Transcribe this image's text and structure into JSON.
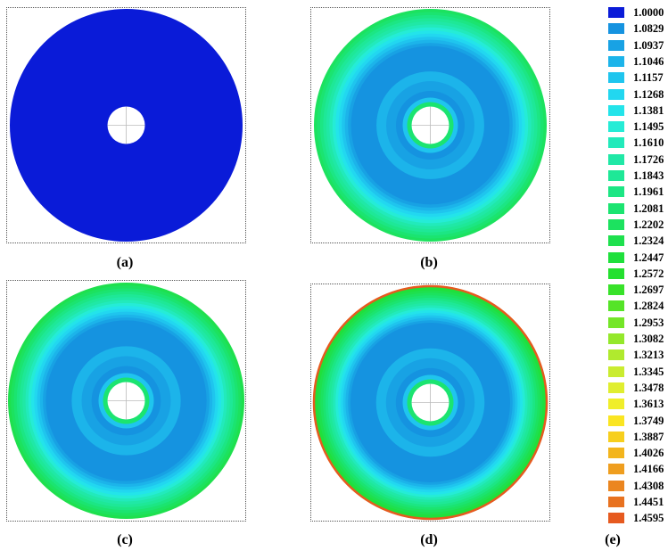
{
  "panels": [
    {
      "label": "(a)",
      "fill": "uniform",
      "ring_count": 0
    },
    {
      "label": "(b)",
      "fill": "gradient",
      "ring_count": 13
    },
    {
      "label": "(c)",
      "fill": "gradient",
      "ring_count": 14
    },
    {
      "label": "(d)",
      "fill": "gradient",
      "ring_count": 16
    }
  ],
  "legend": {
    "label": "(e)",
    "items": [
      {
        "value": "1.0000",
        "color": "#0a1bd8"
      },
      {
        "value": "1.0829",
        "color": "#1593e0"
      },
      {
        "value": "1.0937",
        "color": "#18a2e4"
      },
      {
        "value": "1.1046",
        "color": "#1cb4ea"
      },
      {
        "value": "1.1157",
        "color": "#1fc5ee"
      },
      {
        "value": "1.1268",
        "color": "#22d7f0"
      },
      {
        "value": "1.1381",
        "color": "#23e4ea"
      },
      {
        "value": "1.1495",
        "color": "#25ecd6"
      },
      {
        "value": "1.1610",
        "color": "#22eabb"
      },
      {
        "value": "1.1726",
        "color": "#20e8a6"
      },
      {
        "value": "1.1843",
        "color": "#1ee897"
      },
      {
        "value": "1.1961",
        "color": "#1ce684"
      },
      {
        "value": "1.2081",
        "color": "#1be470"
      },
      {
        "value": "1.2202",
        "color": "#1ce25f"
      },
      {
        "value": "1.2324",
        "color": "#1ee04e"
      },
      {
        "value": "1.2447",
        "color": "#1fe03c"
      },
      {
        "value": "1.2572",
        "color": "#24e02f"
      },
      {
        "value": "1.2697",
        "color": "#38e22a"
      },
      {
        "value": "1.2824",
        "color": "#55e428"
      },
      {
        "value": "1.2953",
        "color": "#74e628"
      },
      {
        "value": "1.3082",
        "color": "#94e82b"
      },
      {
        "value": "1.3213",
        "color": "#b0ea2e"
      },
      {
        "value": "1.3345",
        "color": "#caec30"
      },
      {
        "value": "1.3478",
        "color": "#e0ee30"
      },
      {
        "value": "1.3613",
        "color": "#f0ee2a"
      },
      {
        "value": "1.3749",
        "color": "#fae522"
      },
      {
        "value": "1.3887",
        "color": "#f7cf1e"
      },
      {
        "value": "1.4026",
        "color": "#f3b51d"
      },
      {
        "value": "1.4166",
        "color": "#ef9e1f"
      },
      {
        "value": "1.4308",
        "color": "#eb8620"
      },
      {
        "value": "1.4451",
        "color": "#e87220"
      },
      {
        "value": "1.4595",
        "color": "#e65a1f"
      }
    ]
  }
}
